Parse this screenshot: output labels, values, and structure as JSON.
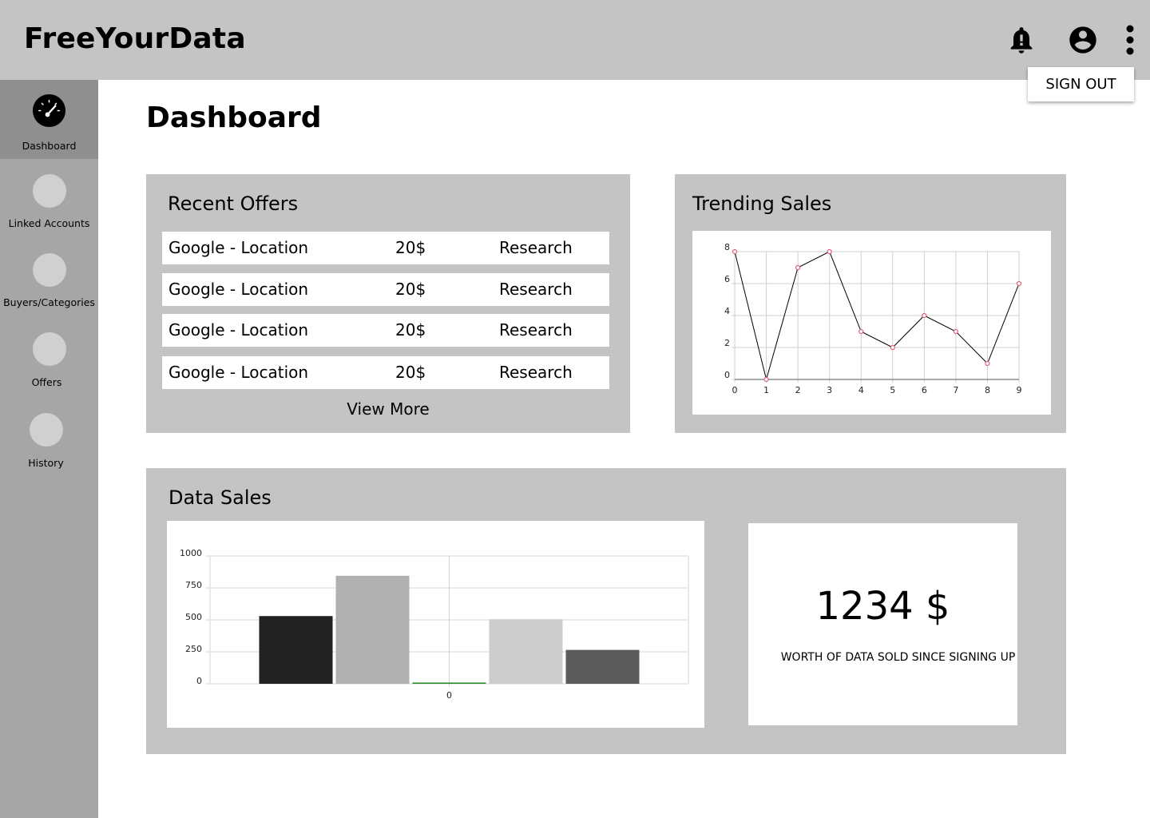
{
  "app": {
    "title": "FreeYourData"
  },
  "header": {
    "icons": [
      "bell-alert-icon",
      "account-circle-icon",
      "more-vert-icon"
    ],
    "menu": {
      "signout_label": "SIGN OUT"
    }
  },
  "sidebar": {
    "items": [
      {
        "label": "Dashboard",
        "icon": "speedometer-icon",
        "active": true
      },
      {
        "label": "Linked Accounts",
        "icon": "placeholder-circle"
      },
      {
        "label": "Buyers/Categories",
        "icon": "placeholder-circle"
      },
      {
        "label": "Offers",
        "icon": "placeholder-circle"
      },
      {
        "label": "History",
        "icon": "placeholder-circle"
      }
    ]
  },
  "main": {
    "title": "Dashboard",
    "recent_offers": {
      "title": "Recent Offers",
      "rows": [
        {
          "source": "Google - Location",
          "price": "20$",
          "buyer": "Research"
        },
        {
          "source": "Google - Location",
          "price": "20$",
          "buyer": "Research"
        },
        {
          "source": "Google - Location",
          "price": "20$",
          "buyer": "Research"
        },
        {
          "source": "Google - Location",
          "price": "20$",
          "buyer": "Research"
        }
      ],
      "view_more_label": "View More"
    },
    "trending_sales": {
      "title": "Trending Sales"
    },
    "data_sales": {
      "title": "Data Sales",
      "total_value": "1234 $",
      "total_caption": "WORTH OF DATA SOLD SINCE SIGNING UP"
    }
  },
  "colors": {
    "topbar": "#c4c4c4",
    "sidebar": "#a6a6a6",
    "sidebar_active": "#8f8f8f",
    "panel": "#c4c4c4",
    "point_marker": "#e0607a"
  },
  "chart_data": [
    {
      "type": "line",
      "x": [
        0,
        1,
        2,
        3,
        4,
        5,
        6,
        7,
        8,
        9
      ],
      "values": [
        8,
        0,
        7,
        8,
        3,
        2,
        4,
        3,
        1,
        6
      ],
      "xlim": [
        0,
        9
      ],
      "ylim": [
        0,
        8
      ],
      "xticks": [
        "0",
        "1",
        "2",
        "3",
        "4",
        "5",
        "6",
        "7",
        "8",
        "9"
      ],
      "yticks": [
        "0",
        "2",
        "4",
        "6",
        "8"
      ],
      "grid": true
    },
    {
      "type": "bar",
      "values": [
        530,
        845,
        10,
        505,
        265
      ],
      "colors": [
        "#222222",
        "#b0b0b0",
        "#2e8b2e",
        "#cccccc",
        "#5a5a5a"
      ],
      "ylim": [
        0,
        1000
      ],
      "yticks": [
        "0",
        "250",
        "500",
        "750",
        "1000"
      ],
      "xticks": [
        "0"
      ],
      "grid": true
    }
  ]
}
